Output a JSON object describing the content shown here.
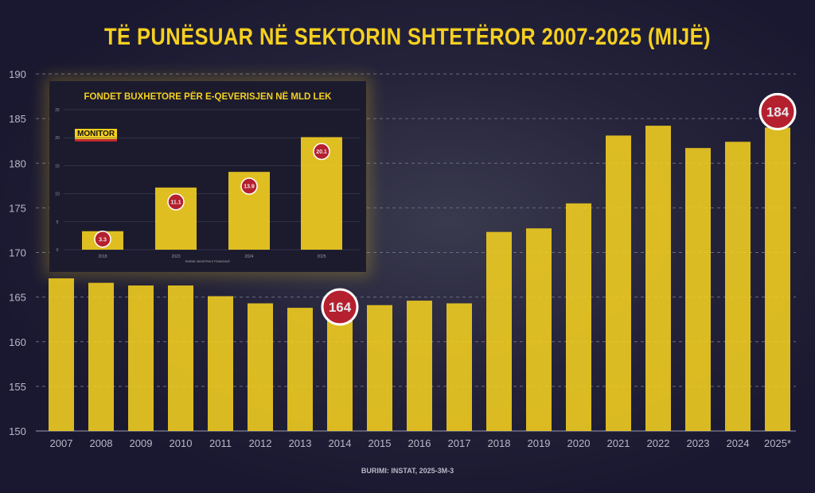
{
  "title": "TË PUNËSUAR NË SEKTORIN SHTETËROR 2007-2025 (MIJË)",
  "source": "BURIMI: INSTAT, 2025-3M-3",
  "colors": {
    "background": "#1a1830",
    "bar": "#f5d020",
    "badge": "#b5202e",
    "axis_text": "#b8b8c8"
  },
  "chart_data": [
    {
      "type": "bar",
      "title": "TË PUNËSUAR NË SEKTORIN SHTETËROR 2007-2025 (MIJË)",
      "categories": [
        "2007",
        "2008",
        "2009",
        "2010",
        "2011",
        "2012",
        "2013",
        "2014",
        "2015",
        "2016",
        "2017",
        "2018",
        "2019",
        "2020",
        "2021",
        "2022",
        "2023",
        "2024",
        "2025*"
      ],
      "values": [
        167.1,
        166.6,
        166.3,
        166.3,
        165.1,
        164.3,
        163.8,
        163.9,
        164.1,
        164.6,
        164.3,
        172.3,
        172.7,
        175.5,
        183.1,
        184.2,
        181.7,
        182.4,
        184
      ],
      "ylim": [
        150,
        190
      ],
      "yticks": [
        150,
        155,
        160,
        165,
        170,
        175,
        180,
        185,
        190
      ],
      "grid": true,
      "annotations": [
        {
          "category": "2014",
          "label": "164"
        },
        {
          "category": "2025*",
          "label": "184"
        }
      ],
      "xlabel": "",
      "ylabel": ""
    },
    {
      "type": "bar",
      "title": "FONDET  BUXHETORE PËR E-QEVERISJEN NË MLD LEK",
      "categories": [
        "2018",
        "2023",
        "2024",
        "2025"
      ],
      "values": [
        3.3,
        11.1,
        13.9,
        20.1
      ],
      "data_labels": [
        "3.3",
        "11.1",
        "13.9",
        "20.1"
      ],
      "ylim": [
        0,
        25
      ],
      "yticks": [
        0,
        5,
        10,
        15,
        20,
        25
      ],
      "grid": true,
      "logo": "MONITOR",
      "source": "BURIMI: MINISTRIA E FINANCAVE"
    }
  ]
}
